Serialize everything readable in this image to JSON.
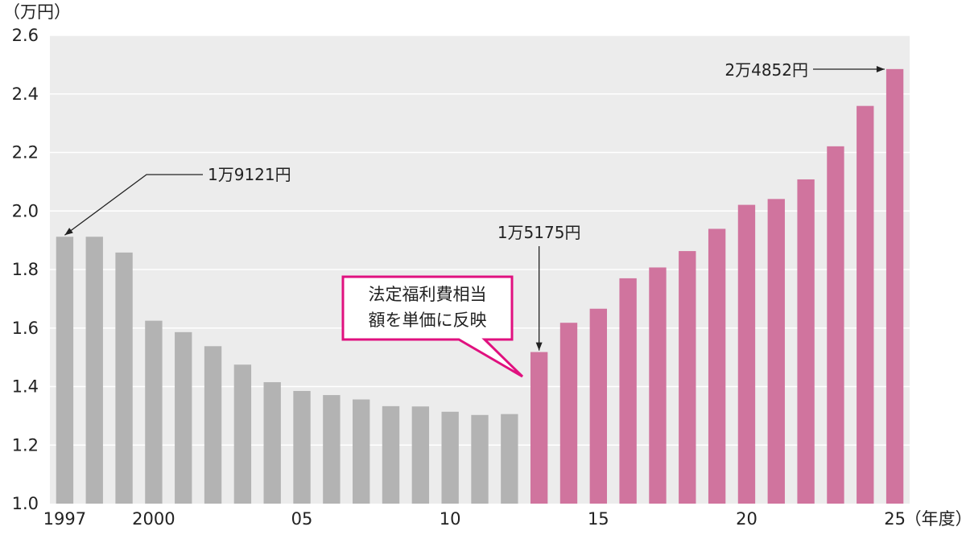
{
  "chart_data": {
    "type": "bar",
    "ylabel": "（万円）",
    "xlabel": "（年度）",
    "ylim": [
      1.0,
      2.6
    ],
    "yticks": [
      "1.0",
      "1.2",
      "1.4",
      "1.6",
      "1.8",
      "2.0",
      "2.2",
      "2.4",
      "2.6"
    ],
    "grid": true,
    "x": [
      1997,
      1998,
      1999,
      2000,
      2001,
      2002,
      2003,
      2004,
      2005,
      2006,
      2007,
      2008,
      2009,
      2010,
      2011,
      2012,
      2013,
      2014,
      2015,
      2016,
      2017,
      2018,
      2019,
      2020,
      2021,
      2022,
      2023,
      2024,
      2025
    ],
    "values": [
      1.912,
      1.912,
      1.858,
      1.625,
      1.586,
      1.538,
      1.475,
      1.415,
      1.385,
      1.371,
      1.356,
      1.333,
      1.332,
      1.314,
      1.303,
      1.306,
      1.518,
      1.618,
      1.666,
      1.77,
      1.807,
      1.863,
      1.939,
      2.021,
      2.041,
      2.108,
      2.221,
      2.359,
      2.485
    ],
    "xtick_labels": [
      {
        "year": 1997,
        "label": "1997"
      },
      {
        "year": 2000,
        "label": "2000"
      },
      {
        "year": 2005,
        "label": "05"
      },
      {
        "year": 2010,
        "label": "10"
      },
      {
        "year": 2015,
        "label": "15"
      },
      {
        "year": 2020,
        "label": "20"
      },
      {
        "year": 2025,
        "label": "25"
      }
    ],
    "highlight_from_year": 2013,
    "colors": {
      "before": "#b3b3b3",
      "after": "#d0749e",
      "plot_bg": "#ececec",
      "grid": "#ffffff",
      "callout_border": "#e0117f"
    },
    "annotations": [
      {
        "year": 1997,
        "text": "1万9121円"
      },
      {
        "year": 2013,
        "text": "1万5175円"
      },
      {
        "year": 2025,
        "text": "2万4852円"
      }
    ],
    "callout": {
      "lines": [
        "法定福利費相当",
        "額を単価に反映"
      ]
    }
  }
}
